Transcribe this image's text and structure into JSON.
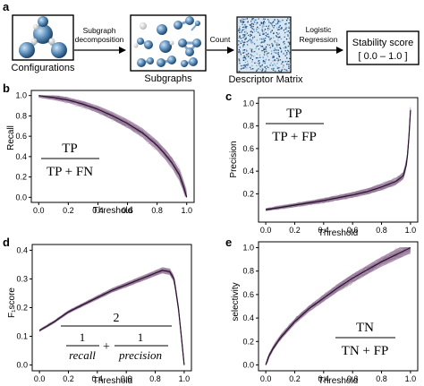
{
  "pipeline": {
    "panel_letter": "a",
    "configurations_label": "Configurations",
    "decomposition_label_1": "Subgraph",
    "decomposition_label_2": "decomposition",
    "subgraphs_label": "Subgraphs",
    "count_label": "Count",
    "descriptor_label": "Descriptor Matrix",
    "regression_label_1": "Logistic",
    "regression_label_2": "Regression",
    "score_title": "Stability score",
    "score_range": "[ 0.0 – 1.0 ]",
    "colors": {
      "atom": "#4b7fae",
      "atom_light": "#9cc0dd",
      "arrow": "#000000"
    }
  },
  "chart_data": [
    {
      "id": "b",
      "type": "line",
      "panel_letter": "b",
      "xlabel": "Threshold",
      "ylabel": "Recall",
      "xlim": [
        0,
        1.0
      ],
      "ylim": [
        0,
        1.0
      ],
      "xticks": [
        "0.0",
        "0.2",
        "0.4",
        "0.6",
        "0.8",
        "1.0"
      ],
      "yticks": [
        "0.0",
        "0.2",
        "0.4",
        "0.6",
        "0.8",
        "1.0"
      ],
      "formula": {
        "numerator": "TP",
        "denominator": "TP + FN"
      },
      "series": [
        {
          "x": [
            0,
            0.1,
            0.2,
            0.3,
            0.4,
            0.5,
            0.6,
            0.7,
            0.8,
            0.85,
            0.9,
            0.95,
            0.98,
            1.0
          ],
          "y": [
            1.0,
            0.98,
            0.955,
            0.915,
            0.865,
            0.8,
            0.725,
            0.635,
            0.51,
            0.43,
            0.34,
            0.22,
            0.1,
            0.0
          ]
        }
      ],
      "band_width": 0.035
    },
    {
      "id": "c",
      "type": "line",
      "panel_letter": "c",
      "xlabel": "Threshold",
      "ylabel": "Precision",
      "xlim": [
        0,
        1.0
      ],
      "ylim": [
        0,
        1.0
      ],
      "xticks": [
        "0.0",
        "0.2",
        "0.4",
        "0.6",
        "0.8",
        "1.0"
      ],
      "yticks": [
        "0.2",
        "0.4",
        "0.6",
        "0.8",
        "1.0"
      ],
      "formula": {
        "numerator": "TP",
        "denominator": "TP + FP"
      },
      "series": [
        {
          "x": [
            0,
            0.1,
            0.2,
            0.3,
            0.4,
            0.5,
            0.6,
            0.7,
            0.8,
            0.9,
            0.95,
            0.97,
            0.98,
            0.99,
            1.0
          ],
          "y": [
            0.06,
            0.08,
            0.1,
            0.12,
            0.14,
            0.165,
            0.19,
            0.22,
            0.26,
            0.31,
            0.36,
            0.45,
            0.55,
            0.72,
            0.94
          ]
        }
      ],
      "band_width": 0.02
    },
    {
      "id": "d",
      "type": "line",
      "panel_letter": "d",
      "xlabel": "Threshold",
      "ylabel": "F₁score",
      "xlim": [
        0,
        1.0
      ],
      "ylim": [
        0,
        0.4
      ],
      "xticks": [
        "0.0",
        "0.2",
        "0.4",
        "0.6",
        "0.8",
        "1.0"
      ],
      "yticks": [
        "0.0",
        "0.1",
        "0.2",
        "0.3",
        "0.4"
      ],
      "formula": {
        "top": "2",
        "left_num": "1",
        "left_den": "recall",
        "plus": "+",
        "right_num": "1",
        "right_den": "precision"
      },
      "series": [
        {
          "x": [
            0,
            0.1,
            0.2,
            0.3,
            0.4,
            0.5,
            0.6,
            0.7,
            0.8,
            0.85,
            0.9,
            0.93,
            0.96,
            0.98,
            1.0
          ],
          "y": [
            0.12,
            0.15,
            0.185,
            0.21,
            0.235,
            0.26,
            0.28,
            0.3,
            0.32,
            0.33,
            0.325,
            0.3,
            0.2,
            0.1,
            0.0
          ]
        }
      ],
      "band_width": 0.018
    },
    {
      "id": "e",
      "type": "line",
      "panel_letter": "e",
      "xlabel": "Threshold",
      "ylabel": "selectivity",
      "xlim": [
        0,
        1.0
      ],
      "ylim": [
        0,
        1.0
      ],
      "xticks": [
        "0.0",
        "0.2",
        "0.4",
        "0.6",
        "0.8",
        "1.0"
      ],
      "yticks": [
        "0.0",
        "0.2",
        "0.4",
        "0.6",
        "0.8",
        "1.0"
      ],
      "formula": {
        "numerator": "TN",
        "denominator": "TN + FP"
      },
      "series": [
        {
          "x": [
            0,
            0.02,
            0.05,
            0.1,
            0.2,
            0.3,
            0.4,
            0.5,
            0.6,
            0.7,
            0.8,
            0.9,
            1.0
          ],
          "y": [
            0.0,
            0.07,
            0.14,
            0.23,
            0.37,
            0.48,
            0.57,
            0.66,
            0.74,
            0.81,
            0.88,
            0.94,
            1.0
          ]
        }
      ],
      "band_width": 0.03
    }
  ],
  "style": {
    "mean_line": "#2b1230",
    "band": "#7a4a80",
    "thin_lines": "#9a9a9a"
  }
}
